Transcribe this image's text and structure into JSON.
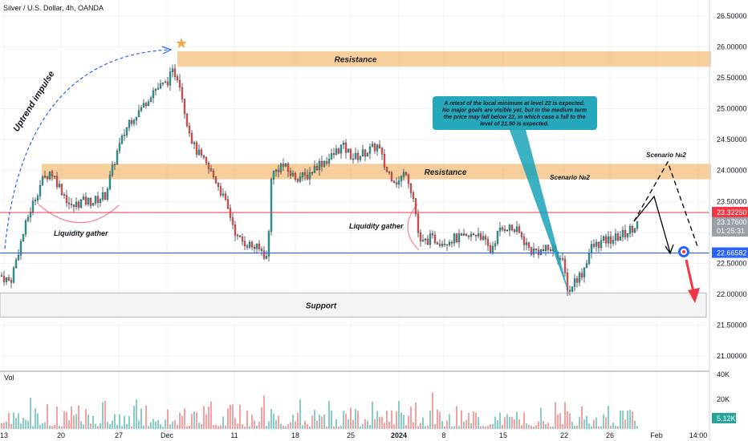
{
  "header": {
    "symbol": "Silver / U.S. Dollar, 4h, OANDA"
  },
  "chart_data": {
    "type": "candlestick",
    "title": "Silver / U.S. Dollar, 4h, OANDA",
    "ylim": [
      20.7,
      26.7
    ],
    "y_ticks": [
      "26.50000",
      "26.00000",
      "25.50000",
      "25.00000",
      "24.50000",
      "24.00000",
      "23.50000",
      "23.00000",
      "22.50000",
      "22.00000",
      "21.50000",
      "21.00000"
    ],
    "y_tick_values": [
      26.5,
      26.0,
      25.5,
      25.0,
      24.5,
      24.0,
      23.5,
      23.0,
      22.5,
      22.0,
      21.5,
      21.0
    ],
    "x_ticks": [
      "13",
      "20",
      "27",
      "Dec",
      "11",
      "18",
      "25",
      "2024",
      "8",
      "15",
      "22",
      "26",
      "Feb",
      "14:00"
    ],
    "price_path": [
      [
        0,
        22.3
      ],
      [
        12,
        22.2
      ],
      [
        22,
        22.7
      ],
      [
        35,
        23.3
      ],
      [
        50,
        23.8
      ],
      [
        62,
        24.0
      ],
      [
        75,
        23.7
      ],
      [
        88,
        23.4
      ],
      [
        100,
        23.5
      ],
      [
        115,
        23.5
      ],
      [
        130,
        23.6
      ],
      [
        145,
        24.3
      ],
      [
        160,
        24.8
      ],
      [
        175,
        25.0
      ],
      [
        190,
        25.3
      ],
      [
        205,
        25.4
      ],
      [
        215,
        25.6
      ],
      [
        222,
        25.5
      ],
      [
        230,
        24.9
      ],
      [
        240,
        24.4
      ],
      [
        255,
        24.1
      ],
      [
        270,
        23.8
      ],
      [
        285,
        23.3
      ],
      [
        295,
        22.9
      ],
      [
        310,
        22.8
      ],
      [
        325,
        22.7
      ],
      [
        333,
        22.55
      ],
      [
        336,
        23.9
      ],
      [
        350,
        24.1
      ],
      [
        365,
        23.9
      ],
      [
        380,
        23.9
      ],
      [
        395,
        24.1
      ],
      [
        410,
        24.2
      ],
      [
        425,
        24.4
      ],
      [
        440,
        24.2
      ],
      [
        455,
        24.3
      ],
      [
        470,
        24.4
      ],
      [
        480,
        24.0
      ],
      [
        495,
        23.8
      ],
      [
        505,
        24.0
      ],
      [
        515,
        23.5
      ],
      [
        522,
        22.8
      ],
      [
        535,
        22.9
      ],
      [
        550,
        22.85
      ],
      [
        565,
        22.9
      ],
      [
        580,
        22.9
      ],
      [
        595,
        23.0
      ],
      [
        610,
        22.7
      ],
      [
        620,
        23.0
      ],
      [
        630,
        23.1
      ],
      [
        645,
        23.0
      ],
      [
        660,
        22.7
      ],
      [
        675,
        22.7
      ],
      [
        690,
        22.75
      ],
      [
        700,
        22.5
      ],
      [
        708,
        22.0
      ],
      [
        713,
        22.2
      ],
      [
        725,
        22.35
      ],
      [
        735,
        22.75
      ],
      [
        750,
        22.85
      ],
      [
        765,
        22.9
      ],
      [
        780,
        23.0
      ],
      [
        795,
        23.176
      ]
    ],
    "volume_ticks": [
      "40K",
      "20K"
    ],
    "volume_tick_values": [
      40000,
      20000
    ],
    "volume_last": "5.12K",
    "last_price": "23.17600",
    "countdown": "01:25:31",
    "red_level": "23.32250",
    "red_level_value": 23.3225,
    "blue_level": "22.66582",
    "blue_level_value": 22.66582,
    "zones": [
      {
        "label": "Resistance",
        "from": 25.68,
        "to": 25.93
      },
      {
        "label": "Resistance",
        "from": 23.86,
        "to": 24.11
      },
      {
        "label": "Support",
        "from": 21.63,
        "to": 22.02
      }
    ],
    "annotations": {
      "uptrend": "Uptrend impulse",
      "liquidity_left": "Liquidity gather",
      "liquidity_right": "Liquidity gather",
      "scenario_a": "Scenario №2",
      "scenario_b": "Scenario №2",
      "callout": [
        "A retest of the local minimum at level 22 is expected.",
        "No major goals are visible yet, but in the medium term",
        "the price may fall below 22, in which case a fall to the",
        "level of 21.50 is expected."
      ]
    },
    "volume_label": "Vol",
    "grid": true
  },
  "colors": {
    "background": "#ffffff",
    "up": "#26a69a",
    "down": "#ef5350",
    "zone": "#f0a84a",
    "support": "#f3f3f3",
    "red_line": "#f23645",
    "blue_line": "#2962ff",
    "callout": "#1aa3b8"
  }
}
